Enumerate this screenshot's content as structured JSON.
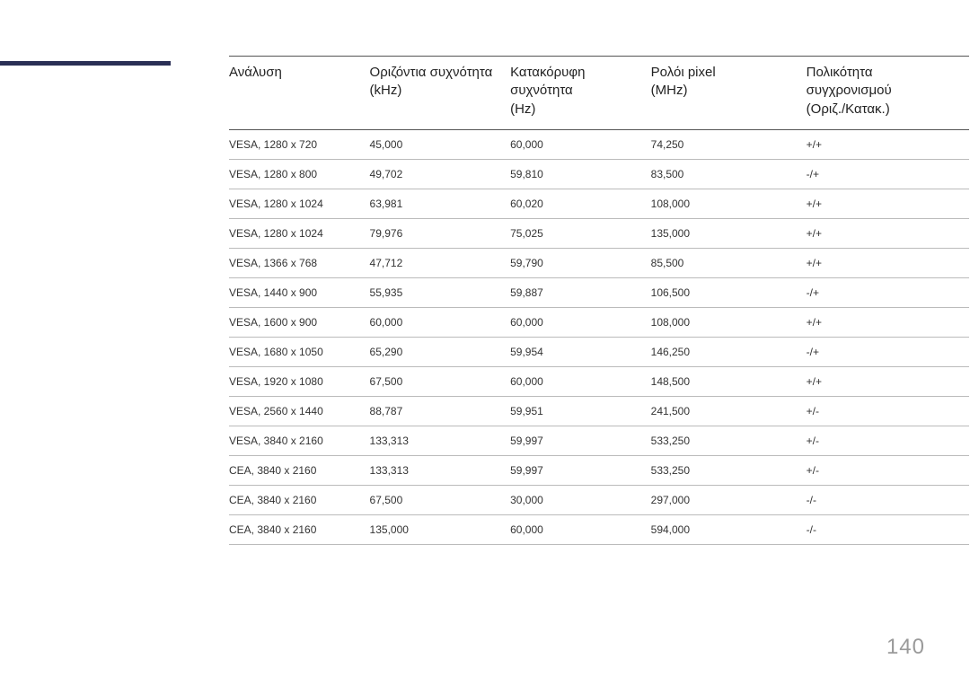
{
  "page_number": "140",
  "accent_bar_color": "#2a2f55",
  "table": {
    "columns": [
      "Ανάλυση",
      "Οριζόντια συχνότητα\n(kHz)",
      "Κατακόρυφη\nσυχνότητα\n(Hz)",
      "Ρολόι pixel\n(MHz)",
      "Πολικότητα\nσυγχρονισμού\n(Οριζ./Κατακ.)"
    ],
    "rows": [
      [
        "VESA, 1280 x 720",
        "45,000",
        "60,000",
        "74,250",
        "+/+"
      ],
      [
        "VESA, 1280 x 800",
        "49,702",
        "59,810",
        "83,500",
        "-/+"
      ],
      [
        "VESA, 1280 x 1024",
        "63,981",
        "60,020",
        "108,000",
        "+/+"
      ],
      [
        "VESA, 1280 x 1024",
        "79,976",
        "75,025",
        "135,000",
        "+/+"
      ],
      [
        "VESA, 1366 x 768",
        "47,712",
        "59,790",
        "85,500",
        "+/+"
      ],
      [
        "VESA, 1440 x 900",
        "55,935",
        "59,887",
        "106,500",
        "-/+"
      ],
      [
        "VESA, 1600 x 900",
        "60,000",
        "60,000",
        "108,000",
        "+/+"
      ],
      [
        "VESA, 1680 x 1050",
        "65,290",
        "59,954",
        "146,250",
        "-/+"
      ],
      [
        "VESA, 1920 x 1080",
        "67,500",
        "60,000",
        "148,500",
        "+/+"
      ],
      [
        "VESA, 2560 x 1440",
        "88,787",
        "59,951",
        "241,500",
        "+/-"
      ],
      [
        "VESA, 3840 x 2160",
        "133,313",
        "59,997",
        "533,250",
        "+/-"
      ],
      [
        "CEA, 3840 x 2160",
        "133,313",
        "59,997",
        "533,250",
        "+/-"
      ],
      [
        "CEA, 3840 x 2160",
        "67,500",
        "30,000",
        "297,000",
        "-/-"
      ],
      [
        "CEA, 3840 x 2160",
        "135,000",
        "60,000",
        "594,000",
        "-/-"
      ]
    ],
    "header_fontsize": 15,
    "body_fontsize": 12,
    "border_color_header": "#555555",
    "border_color_row": "#bbbbbb",
    "background_color": "#ffffff"
  }
}
